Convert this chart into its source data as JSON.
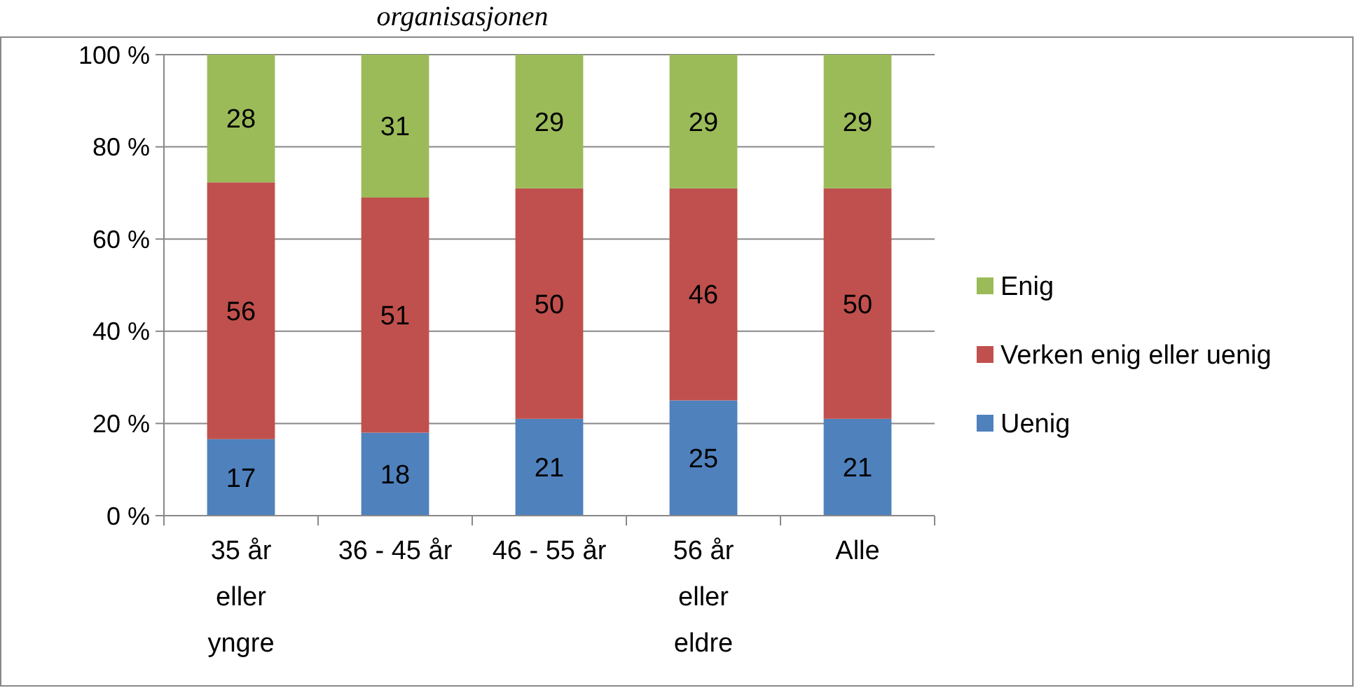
{
  "chart_data": {
    "type": "bar",
    "title": "organisasjonen",
    "stacked": true,
    "categories": [
      "35 år eller yngre",
      "36 - 45 år",
      "46 - 55 år",
      "56 år eller eldre",
      "Alle"
    ],
    "series": [
      {
        "name": "Uenig",
        "color": "#4f81bd",
        "values": [
          16.6,
          18,
          21,
          25,
          21
        ],
        "value_labels": [
          "17",
          "18",
          "21",
          "25",
          "21"
        ]
      },
      {
        "name": "Verken enig eller uenig",
        "color": "#c0504d",
        "values": [
          55.7,
          51,
          50,
          46,
          50
        ],
        "value_labels": [
          "56",
          "51",
          "50",
          "46",
          "50"
        ]
      },
      {
        "name": "Enig",
        "color": "#9bbb59",
        "values": [
          27.7,
          31,
          29,
          29,
          29
        ],
        "value_labels": [
          "28",
          "31",
          "29",
          "29",
          "29"
        ]
      }
    ],
    "ylim": [
      0,
      100
    ],
    "yticks": [
      {
        "value": 0,
        "label": "0 %"
      },
      {
        "value": 20,
        "label": "20 %"
      },
      {
        "value": 40,
        "label": "40 %"
      },
      {
        "value": 60,
        "label": "60 %"
      },
      {
        "value": 80,
        "label": "80 %"
      },
      {
        "value": 100,
        "label": "100 %"
      }
    ],
    "grid": "y",
    "legend": "right"
  }
}
